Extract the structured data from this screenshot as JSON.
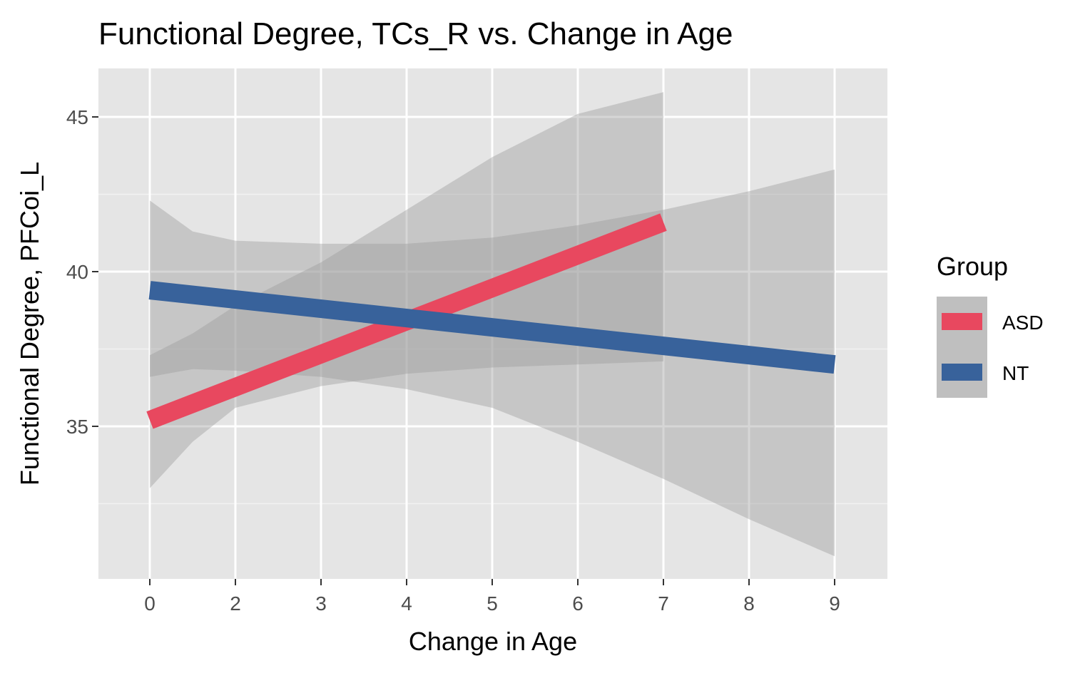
{
  "chart_data": {
    "type": "line",
    "title": "Functional Degree, TCs_R vs. Change in Age",
    "xlabel": "Change in Age",
    "ylabel": "Functional Degree, PFCoi_L",
    "x_ticks": [
      0,
      2,
      3,
      4,
      5,
      6,
      7,
      8,
      9
    ],
    "x_tick_labels": [
      "0",
      "2",
      "3",
      "4",
      "5",
      "6",
      "7",
      "8",
      "9"
    ],
    "y_ticks": [
      35,
      40,
      45
    ],
    "y_tick_labels": [
      "35",
      "40",
      "45"
    ],
    "ylim": [
      30.4,
      46.6
    ],
    "grid": true,
    "background": "#e5e5e5",
    "legend": {
      "title": "Group",
      "position": "right"
    },
    "series": [
      {
        "name": "ASD",
        "color": "#e8485f",
        "x": [
          0,
          7
        ],
        "y": [
          35.2,
          41.6
        ],
        "ribbon": {
          "x": [
            0,
            1,
            2,
            3,
            4,
            5,
            6,
            7
          ],
          "lower": [
            33.0,
            34.5,
            35.6,
            36.3,
            36.7,
            36.9,
            37.0,
            37.1
          ],
          "upper": [
            37.3,
            38.0,
            38.9,
            40.3,
            42.0,
            43.7,
            45.1,
            45.8
          ]
        }
      },
      {
        "name": "NT",
        "color": "#38629b",
        "x": [
          0,
          9
        ],
        "y": [
          39.4,
          37.0
        ],
        "ribbon": {
          "x": [
            0,
            1,
            2,
            3,
            4,
            5,
            6,
            7,
            8,
            9
          ],
          "lower": [
            36.6,
            36.85,
            36.8,
            36.6,
            36.2,
            35.6,
            34.5,
            33.3,
            32.0,
            30.8
          ],
          "upper": [
            42.3,
            41.3,
            41.0,
            40.9,
            40.9,
            41.1,
            41.5,
            42.0,
            42.6,
            43.3
          ]
        }
      }
    ]
  }
}
